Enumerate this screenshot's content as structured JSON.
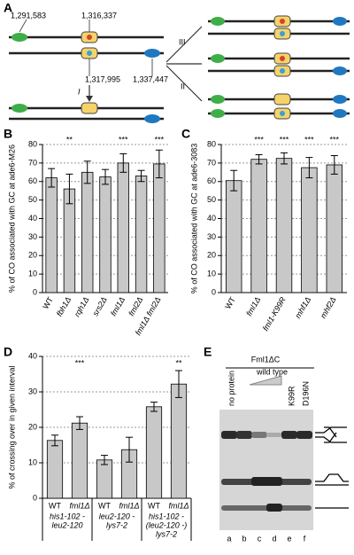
{
  "panel_labels": [
    "A",
    "B",
    "C",
    "D",
    "E"
  ],
  "diagram": {
    "positions": [
      "1,291,583",
      "1,316,337",
      "1,317,995",
      "1,337,447"
    ],
    "pathways": [
      "I",
      "II",
      "III"
    ]
  },
  "chart_data": [
    {
      "type": "bar",
      "y_label": "% of CO associated with GC at ade6-M26",
      "categories": [
        "WT",
        "fbh1Δ",
        "rqh1Δ",
        "srs2Δ",
        "fml1Δ",
        "fml2Δ",
        "fml1Δ fml2Δ"
      ],
      "values": [
        62,
        56,
        65,
        62.5,
        70,
        63,
        69.5
      ],
      "errors": [
        5,
        8,
        6,
        4,
        5,
        3,
        7.5
      ],
      "significance": [
        null,
        "**",
        null,
        null,
        "***",
        null,
        "***"
      ],
      "color": "#c8c8c8",
      "ylim": [
        0,
        80
      ],
      "yticks": [
        0,
        10,
        20,
        30,
        40,
        50,
        60,
        70,
        80
      ],
      "grid": true
    },
    {
      "type": "bar",
      "y_label": "% of CO associated with GC at ade6-3083",
      "categories": [
        "WT",
        "fml1Δ",
        "fml1-K99R",
        "mhf1Δ",
        "mhf2Δ"
      ],
      "values": [
        60.5,
        72,
        72.5,
        67.5,
        69
      ],
      "errors": [
        5.5,
        2.5,
        3,
        5.5,
        5
      ],
      "significance": [
        null,
        "***",
        "***",
        "***",
        "***"
      ],
      "color": "#c8c8c8",
      "ylim": [
        0,
        80
      ],
      "yticks": [
        0,
        10,
        20,
        30,
        40,
        50,
        60,
        70,
        80
      ],
      "grid": true
    },
    {
      "type": "bar",
      "y_label": "% of crossing over in given interval",
      "categories": [
        "WT",
        "fml1Δ",
        "WT",
        "fml1Δ",
        "WT",
        "fml1Δ"
      ],
      "groups": [
        [
          "his1-102 -",
          "leu2-120"
        ],
        [
          "leu2-120 -",
          "lys7-2"
        ],
        [
          "his1-102 -",
          "(leu2-120 -)",
          "lys7-2"
        ]
      ],
      "values": [
        16.3,
        21.2,
        10.8,
        13.7,
        25.8,
        32.2
      ],
      "errors": [
        1.5,
        1.8,
        1.3,
        3.5,
        1.3,
        3.8
      ],
      "significance": [
        null,
        "***",
        null,
        null,
        null,
        "**"
      ],
      "color": "#c8c8c8",
      "ylim": [
        0,
        40
      ],
      "yticks": [
        0,
        10,
        20,
        30,
        40
      ],
      "grid": true
    }
  ],
  "gel": {
    "title": "Fml1ΔC",
    "lanes": [
      "no protein",
      "wild type",
      "K99R",
      "D196N"
    ],
    "lane_letters": [
      "a",
      "b",
      "c",
      "d",
      "e",
      "f"
    ]
  }
}
